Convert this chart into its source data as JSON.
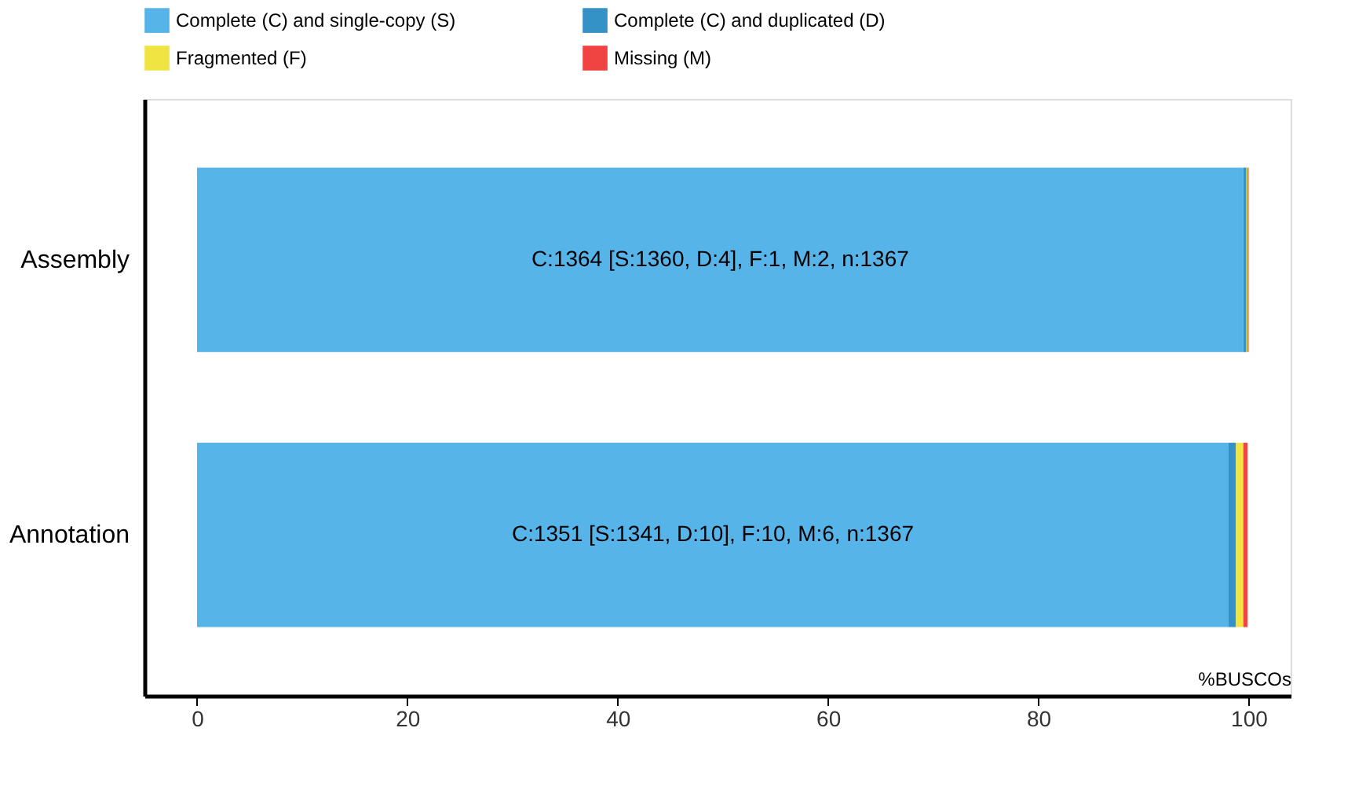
{
  "chart_data": {
    "type": "bar",
    "orientation": "horizontal",
    "stacked": true,
    "categories": [
      "Assembly",
      "Annotation"
    ],
    "series": [
      {
        "name": "Complete (C) and single-copy (S)",
        "color": "#56b4e9",
        "values": [
          99.5,
          98.1
        ]
      },
      {
        "name": "Complete (C) and duplicated (D)",
        "color": "#3492c7",
        "values": [
          0.3,
          0.7
        ]
      },
      {
        "name": "Fragmented (F)",
        "color": "#f0e442",
        "values": [
          0.1,
          0.7
        ]
      },
      {
        "name": "Missing (M)",
        "color": "#f04442",
        "values": [
          0.1,
          0.4
        ]
      }
    ],
    "xlabel": "%BUSCOs",
    "xlim": [
      -5,
      104
    ],
    "xticks": [
      0,
      20,
      40,
      60,
      80,
      100
    ],
    "annotations": [
      "C:1364 [S:1360, D:4], F:1, M:2, n:1367",
      "C:1351 [S:1341, D:10], F:10, M:6, n:1367"
    ],
    "grid": false,
    "legend": "top"
  }
}
